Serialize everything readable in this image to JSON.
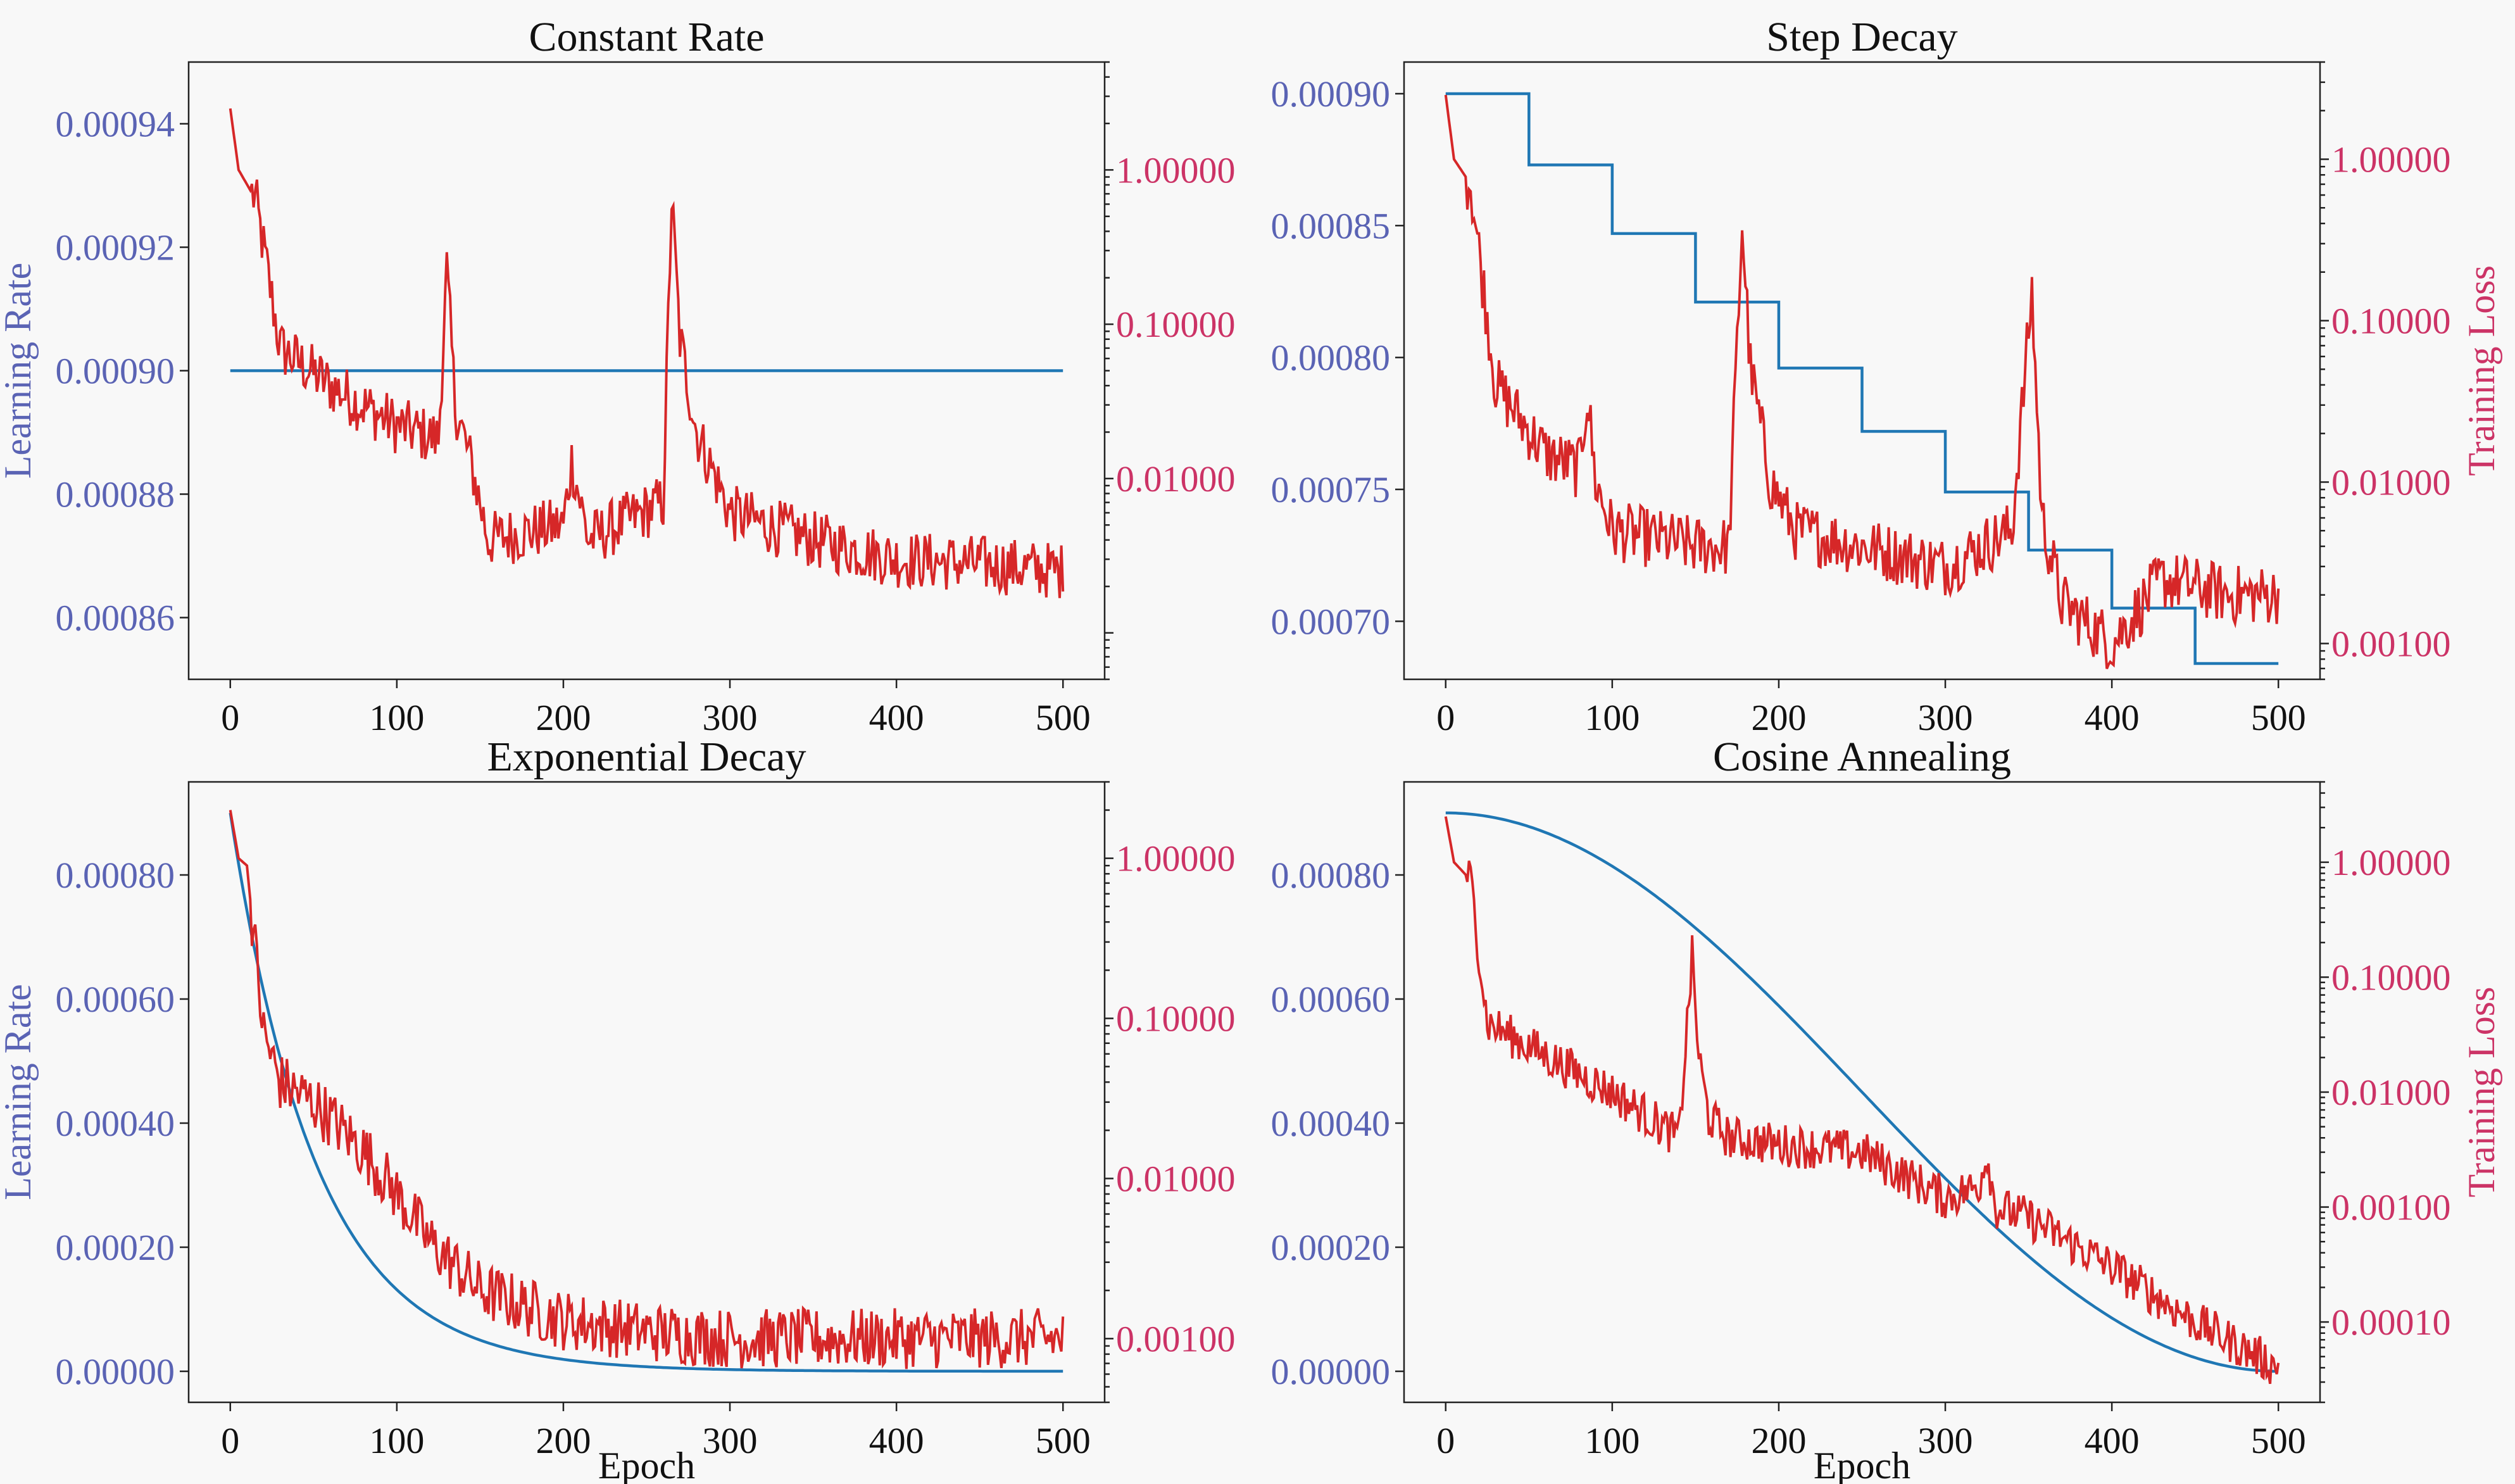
{
  "colors": {
    "lr": "#1f77b4",
    "loss": "#d62728",
    "left_axis": "#5a63b4",
    "right_axis": "#cc3366",
    "text": "#111111",
    "panel": "#f8f8f8"
  },
  "chart_data": [
    {
      "type": "line",
      "title": "Constant Rate",
      "xlabel": "",
      "ylabel": "Learning Rate",
      "y2label": "",
      "xlim": [
        -25,
        525
      ],
      "xticks": [
        0,
        100,
        200,
        300,
        400,
        500
      ],
      "ylim": [
        0.00085,
        0.00095
      ],
      "yticks": [
        0.00086,
        0.00088,
        0.0009,
        0.00092,
        0.00094
      ],
      "yticklabels": [
        "0.00086",
        "0.00088",
        "0.00090",
        "0.00092",
        "0.00094"
      ],
      "y2lim": [
        0.0005,
        5.0
      ],
      "y2scale": "log",
      "y2ticks": [
        0.01,
        0.1,
        1.0
      ],
      "y2ticklabels": [
        "0.01000",
        "0.10000",
        "1.00000"
      ],
      "lr_schedule": "constant",
      "series": [
        {
          "name": "",
          "axis": "left",
          "x": [
            0,
            500
          ],
          "values": [
            0.0009,
            0.0009
          ]
        },
        {
          "name": "",
          "axis": "right",
          "x": [
            0,
            5,
            15,
            30,
            60,
            100,
            125,
            130,
            135,
            145,
            155,
            200,
            205,
            215,
            260,
            265,
            270,
            280,
            300,
            350,
            400,
            450,
            500
          ],
          "values": [
            2.5,
            1.0,
            0.65,
            0.07,
            0.04,
            0.022,
            0.018,
            0.22,
            0.03,
            0.012,
            0.004,
            0.005,
            0.013,
            0.004,
            0.007,
            0.65,
            0.08,
            0.02,
            0.006,
            0.004,
            0.003,
            0.0028,
            0.0025
          ]
        }
      ]
    },
    {
      "type": "line",
      "title": "Step Decay",
      "xlabel": "",
      "ylabel": "",
      "y2label": "Training Loss",
      "xlim": [
        -25,
        525
      ],
      "xticks": [
        0,
        100,
        200,
        300,
        400,
        500
      ],
      "ylim": [
        0.000678,
        0.000912
      ],
      "yticks": [
        0.0007,
        0.00075,
        0.0008,
        0.00085,
        0.0009
      ],
      "yticklabels": [
        "0.00070",
        "0.00075",
        "0.00080",
        "0.00085",
        "0.00090"
      ],
      "y2lim": [
        0.0006,
        4.0
      ],
      "y2scale": "log",
      "y2ticks": [
        0.001,
        0.01,
        0.1,
        1.0
      ],
      "y2ticklabels": [
        "0.00100",
        "0.01000",
        "0.10000",
        "1.00000"
      ],
      "lr_schedule": "step",
      "series": [
        {
          "name": "",
          "axis": "left",
          "x": [
            0,
            50,
            100,
            150,
            200,
            250,
            300,
            350,
            400,
            450,
            500
          ],
          "values": [
            0.0009,
            0.000873,
            0.000847,
            0.000821,
            0.000796,
            0.000772,
            0.000749,
            0.000727,
            0.000705,
            0.000684,
            0.000684
          ]
        },
        {
          "name": "",
          "axis": "right",
          "x": [
            0,
            5,
            15,
            30,
            60,
            80,
            85,
            90,
            100,
            150,
            170,
            178,
            183,
            195,
            210,
            250,
            300,
            340,
            352,
            358,
            370,
            400,
            430,
            470,
            500
          ],
          "values": [
            2.5,
            1.0,
            0.7,
            0.04,
            0.015,
            0.012,
            0.035,
            0.01,
            0.005,
            0.004,
            0.004,
            0.4,
            0.05,
            0.01,
            0.005,
            0.004,
            0.003,
            0.005,
            0.15,
            0.006,
            0.0018,
            0.001,
            0.0025,
            0.002,
            0.002
          ]
        }
      ]
    },
    {
      "type": "line",
      "title": "Exponential Decay",
      "xlabel": "Epoch",
      "ylabel": "Learning Rate",
      "y2label": "",
      "xlim": [
        -25,
        525
      ],
      "xticks": [
        0,
        100,
        200,
        300,
        400,
        500
      ],
      "ylim": [
        -5e-05,
        0.00095
      ],
      "yticks": [
        0.0,
        0.0002,
        0.0004,
        0.0006,
        0.0008
      ],
      "yticklabels": [
        "0.00000",
        "0.00020",
        "0.00040",
        "0.00060",
        "0.00080"
      ],
      "y2lim": [
        0.0004,
        3.0
      ],
      "y2scale": "log",
      "y2ticks": [
        0.001,
        0.01,
        0.1,
        1.0
      ],
      "y2ticklabels": [
        "0.00100",
        "0.01000",
        "0.10000",
        "1.00000"
      ],
      "lr_schedule": "exponential",
      "series": [
        {
          "name": "",
          "axis": "left",
          "x": [
            0,
            25,
            50,
            75,
            100,
            150,
            200,
            300,
            400,
            500
          ],
          "values": [
            0.0009,
            0.00056,
            0.00035,
            0.00021,
            0.00013,
            5e-05,
            2e-05,
            2e-06,
            3e-07,
            0.0
          ]
        },
        {
          "name": "",
          "axis": "right",
          "x": [
            0,
            5,
            10,
            20,
            30,
            50,
            80,
            100,
            120,
            150,
            200,
            250,
            300,
            400,
            500
          ],
          "values": [
            2.0,
            1.0,
            0.9,
            0.08,
            0.04,
            0.03,
            0.015,
            0.008,
            0.004,
            0.002,
            0.0013,
            0.0011,
            0.001,
            0.001,
            0.001
          ]
        }
      ]
    },
    {
      "type": "line",
      "title": "Cosine Annealing",
      "xlabel": "Epoch",
      "ylabel": "",
      "y2label": "Training Loss",
      "xlim": [
        -25,
        525
      ],
      "xticks": [
        0,
        100,
        200,
        300,
        400,
        500
      ],
      "ylim": [
        -5e-05,
        0.00095
      ],
      "yticks": [
        0.0,
        0.0002,
        0.0004,
        0.0006,
        0.0008
      ],
      "yticklabels": [
        "0.00000",
        "0.00020",
        "0.00040",
        "0.00060",
        "0.00080"
      ],
      "y2lim": [
        2e-05,
        5.0
      ],
      "y2scale": "log",
      "y2ticks": [
        0.0001,
        0.001,
        0.01,
        0.1,
        1.0
      ],
      "y2ticklabels": [
        "0.00010",
        "0.00100",
        "0.01000",
        "0.10000",
        "1.00000"
      ],
      "lr_schedule": "cosine",
      "series": [
        {
          "name": "",
          "axis": "left",
          "x": [
            0,
            50,
            100,
            150,
            200,
            250,
            300,
            350,
            400,
            450,
            500
          ],
          "values": [
            0.0009,
            0.000878,
            0.000814,
            0.000715,
            0.000589,
            0.00045,
            0.000311,
            0.000186,
            8.6e-05,
            2.2e-05,
            0.0
          ]
        },
        {
          "name": "",
          "axis": "right",
          "x": [
            0,
            5,
            15,
            25,
            50,
            100,
            140,
            148,
            152,
            158,
            170,
            200,
            250,
            300,
            320,
            325,
            330,
            350,
            400,
            450,
            500
          ],
          "values": [
            2.5,
            1.0,
            0.7,
            0.04,
            0.025,
            0.01,
            0.004,
            0.15,
            0.02,
            0.006,
            0.004,
            0.0035,
            0.003,
            0.0012,
            0.0015,
            0.003,
            0.001,
            0.0008,
            0.0003,
            0.0001,
            4e-05
          ]
        }
      ]
    }
  ]
}
